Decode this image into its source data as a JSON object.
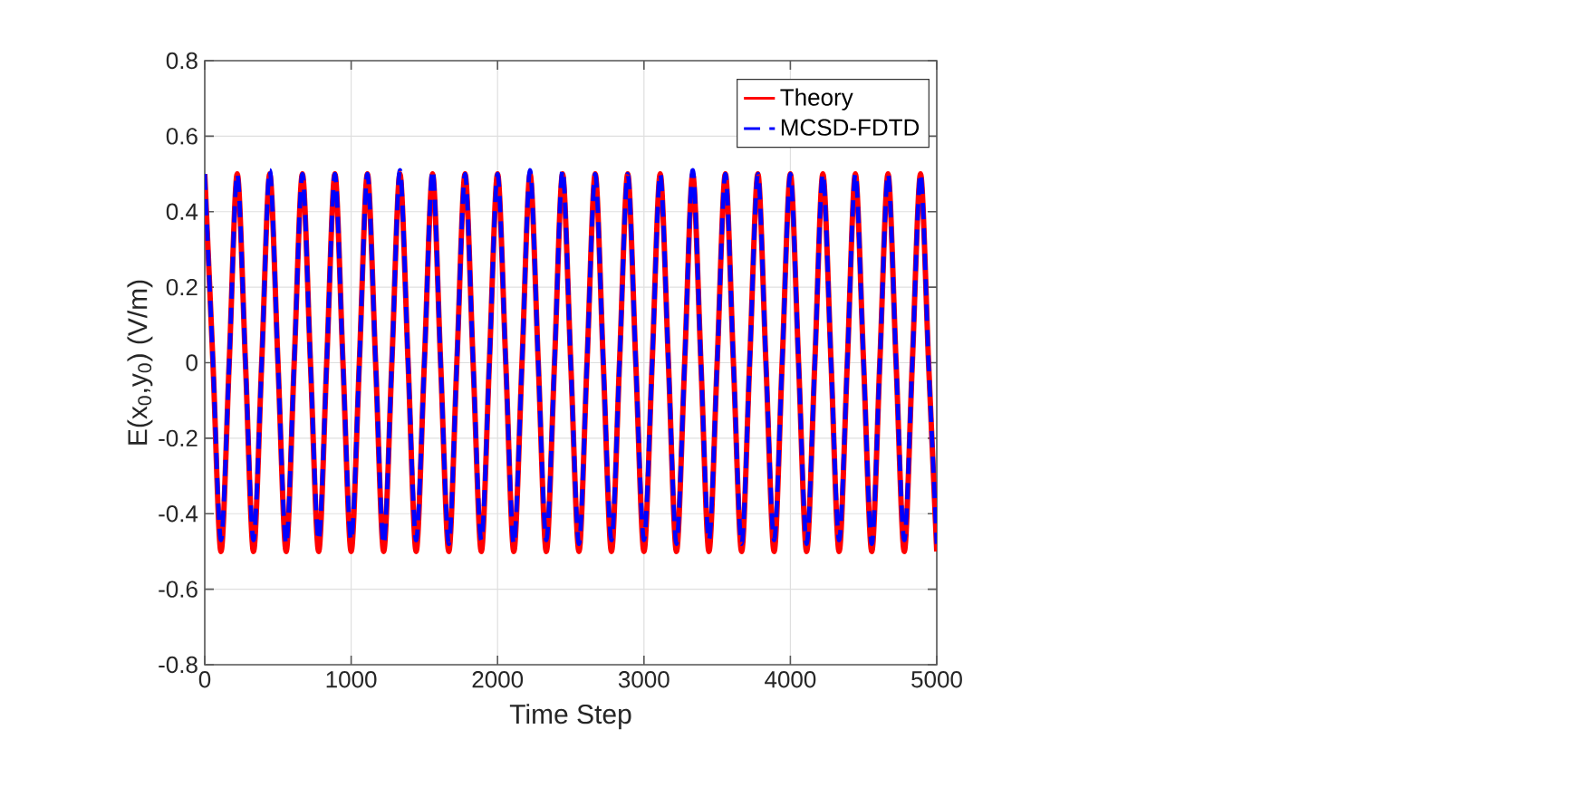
{
  "chart_data": {
    "type": "line",
    "xlabel": "Time Step",
    "ylabel": "E(x$_{0}$,y$_{0}$) (V/m)",
    "x": [
      0,
      56,
      111,
      167,
      222,
      278,
      333,
      389,
      444,
      500,
      556,
      611,
      667,
      722,
      778,
      833,
      889,
      944,
      1000,
      1056,
      1111,
      1167,
      1222,
      1278,
      1333,
      1389,
      1444,
      1500,
      1556,
      1611,
      1667,
      1722,
      1778,
      1833,
      1889,
      1944,
      2000,
      2056,
      2111,
      2167,
      2222,
      2278,
      2333,
      2389,
      2444,
      2500,
      2556,
      2611,
      2667,
      2722,
      2778,
      2833,
      2889,
      2944,
      3000,
      3056,
      3111,
      3167,
      3222,
      3278,
      3333,
      3389,
      3444,
      3500,
      3556,
      3611,
      3667,
      3722,
      3778,
      3833,
      3889,
      3944,
      4000,
      4056,
      4111,
      4167,
      4222,
      4278,
      4333,
      4389,
      4444,
      4500,
      4556,
      4611,
      4667,
      4722,
      4778,
      4833,
      4889,
      4944,
      5000
    ],
    "series": [
      {
        "name": "Theory",
        "color": "#ff0000",
        "line_style": "solid",
        "values": [
          0.5,
          0,
          -0.5,
          0,
          0.5,
          0,
          -0.5,
          0,
          0.5,
          0,
          -0.5,
          0,
          0.5,
          0,
          -0.5,
          0,
          0.5,
          0,
          -0.5,
          0,
          0.5,
          0,
          -0.5,
          0,
          0.5,
          0,
          -0.5,
          0,
          0.5,
          0,
          -0.5,
          0,
          0.5,
          0,
          -0.5,
          0,
          0.5,
          0,
          -0.5,
          0,
          0.5,
          0,
          -0.5,
          0,
          0.5,
          0,
          -0.5,
          0,
          0.5,
          0,
          -0.5,
          0,
          0.5,
          0,
          -0.5,
          0,
          0.5,
          0,
          -0.5,
          0,
          0.5,
          0,
          -0.5,
          0,
          0.5,
          0,
          -0.5,
          0,
          0.5,
          0,
          -0.5,
          0,
          0.5,
          0,
          -0.5,
          0,
          0.5,
          0,
          -0.5,
          0,
          0.5,
          0,
          -0.5,
          0,
          0.5,
          0,
          -0.5,
          0,
          0.5,
          0,
          -0.5
        ]
      },
      {
        "name": "MCSD-FDTD",
        "color": "#0000ff",
        "line_style": "dashed",
        "values": [
          0.5,
          0,
          -0.47,
          0,
          0.5,
          0,
          -0.47,
          0,
          0.51,
          0,
          -0.48,
          0,
          0.5,
          0,
          -0.47,
          0,
          0.5,
          0,
          -0.47,
          0,
          0.5,
          0,
          -0.48,
          0,
          0.51,
          0,
          -0.47,
          0,
          0.51,
          0,
          -0.48,
          0,
          0.5,
          0,
          -0.47,
          0,
          0.5,
          0,
          -0.48,
          0,
          0.51,
          0,
          -0.47,
          0,
          0.51,
          0,
          -0.48,
          0,
          0.5,
          0,
          -0.47,
          0,
          0.5,
          0,
          -0.47,
          0,
          0.5,
          0,
          -0.48,
          0,
          0.51,
          0,
          -0.47,
          0,
          0.5,
          0,
          -0.48,
          0,
          0.5,
          0,
          -0.47,
          0,
          0.5,
          0,
          -0.48,
          0,
          0.5,
          0,
          -0.47,
          0,
          0.5,
          0,
          -0.48,
          0,
          0.5,
          0,
          -0.47,
          0,
          0.5,
          0,
          -0.48
        ]
      }
    ],
    "xlim": [
      0,
      5000
    ],
    "xticks": [
      0,
      1000,
      2000,
      3000,
      4000,
      5000
    ],
    "ylim": [
      -0.8,
      0.8
    ],
    "yticks": [
      -0.8,
      -0.6,
      -0.4,
      -0.2,
      0,
      0.2,
      0.4,
      0.6,
      0.8
    ],
    "grid": true,
    "legend": "top right"
  }
}
